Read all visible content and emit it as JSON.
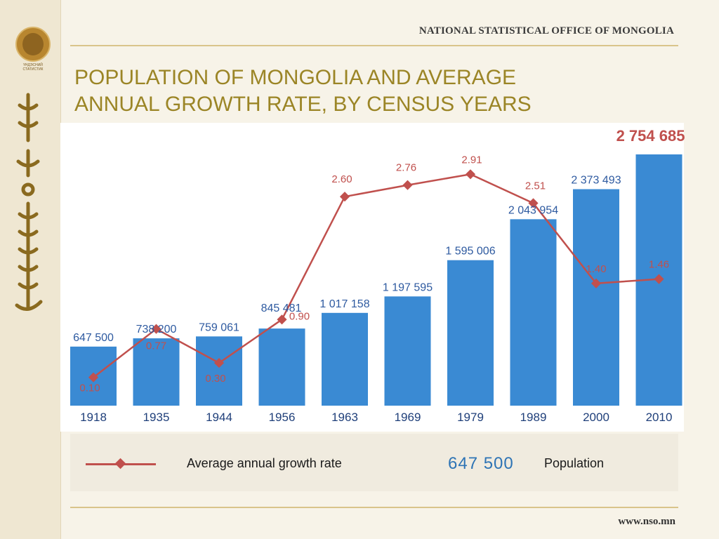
{
  "header": {
    "organization": "NATIONAL STATISTICAL OFFICE OF MONGOLIA",
    "title_line1": "POPULATION OF MONGOLIA AND AVERAGE",
    "title_line2": "ANNUAL GROWTH RATE, BY CENSUS YEARS"
  },
  "colors": {
    "bar": "#3a8ad3",
    "line": "#c0504d",
    "title": "#9b8526",
    "bar_label": "#2e5aa0",
    "rate_label": "#c0504d",
    "highlight_label": "#c0504d"
  },
  "chart_data": {
    "type": "bar",
    "categories": [
      "1918",
      "1935",
      "1944",
      "1956",
      "1963",
      "1969",
      "1979",
      "1989",
      "2000",
      "2010"
    ],
    "series": [
      {
        "name": "Population",
        "values": [
          647500,
          738200,
          759061,
          845481,
          1017158,
          1197595,
          1595006,
          2043954,
          2373493,
          2754685
        ],
        "labels": [
          "647 500",
          "738 200",
          "759 061",
          "845 481",
          "1 017 158",
          "1 197 595",
          "1 595 006",
          "2 043 954",
          "2 373 493",
          "2 754 685"
        ]
      },
      {
        "name": "Average annual growth rate",
        "type": "line",
        "values": [
          0.1,
          0.77,
          0.3,
          0.9,
          2.6,
          2.76,
          2.91,
          2.51,
          1.4,
          1.46
        ],
        "labels": [
          "0.10",
          "0.77",
          "0.30",
          "0.90",
          "2.60",
          "2.76",
          "2.91",
          "2.51",
          "1.40",
          "1.46"
        ]
      }
    ],
    "ylim": [
      0,
      2754685
    ],
    "rate_ylim": [
      0,
      3.2
    ],
    "grid": false,
    "legend_placement": "bottom"
  },
  "legend": {
    "rate_label": "Average annual growth rate",
    "sample_value": "647  500",
    "population_label": "Population"
  },
  "footer": {
    "website": "www.nso.mn"
  }
}
